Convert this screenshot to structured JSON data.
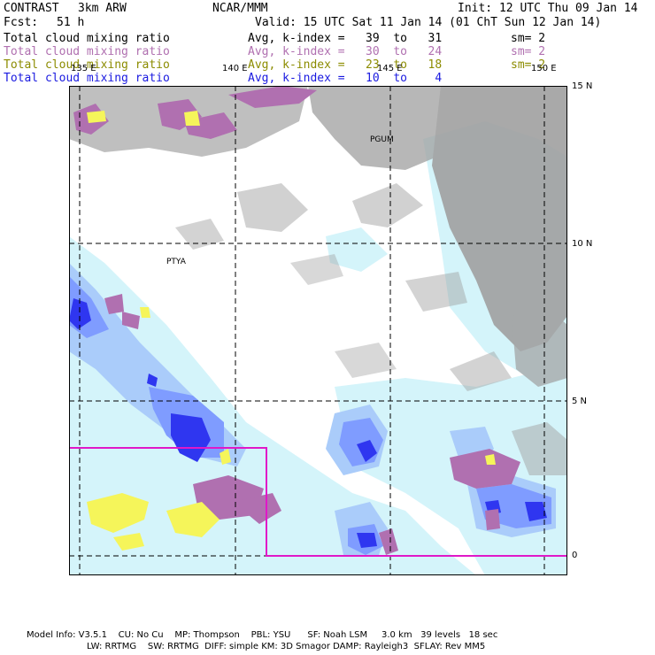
{
  "header": {
    "model": "CONTRAST",
    "resolution": "3km ARW",
    "center": "NCAR/MMM",
    "init": "Init: 12 UTC Thu 09 Jan 14",
    "fcst_label": "Fcst:",
    "fcst_value": "51 h",
    "valid": "Valid: 15 UTC Sat 11 Jan 14 (01 ChT Sun 12 Jan 14)"
  },
  "fields": [
    {
      "name": "Total cloud mixing ratio",
      "range": "Avg, k-index =   39  to   31",
      "sm": "sm= 2",
      "color": "#000000"
    },
    {
      "name": "Total cloud mixing ratio",
      "range": "Avg, k-index =   30  to   24",
      "sm": "sm= 2",
      "color": "#b070b0"
    },
    {
      "name": "Total cloud mixing ratio",
      "range": "Avg, k-index =   23  to   18",
      "sm": "sm= 2",
      "color": "#8c8c00"
    },
    {
      "name": "Total cloud mixing ratio",
      "range": "Avg, k-index =   10  to    4",
      "sm": "",
      "color": "#1a1ae0"
    }
  ],
  "map": {
    "lon_labels": [
      "135 E",
      "140 E",
      "145 E",
      "150 E"
    ],
    "lat_labels": [
      "15 N",
      "10 N",
      "5 N",
      "0"
    ],
    "stations": [
      "PGUM",
      "PTYA"
    ],
    "colors": {
      "upper_cloud": "#a0a0a0",
      "mid_cloud": "#b070b0",
      "low_mid_cloud": "#f5f55a",
      "low_cloud_light": "#d4f4fa",
      "low_cloud_medium": "#aaccfa",
      "low_cloud_strong": "#7f9cff",
      "low_cloud_max": "#2f36f0",
      "inner_domain": "#e018c8"
    }
  },
  "footer": {
    "line1": "Model Info: V3.5.1    CU: No Cu    MP: Thompson    PBL: YSU      SF: Noah LSM     3.0 km   39 levels   18 sec",
    "line2": "LW: RRTMG    SW: RRTMG  DIFF: simple KM: 3D Smagor DAMP: Rayleigh3  SFLAY: Rev MM5"
  }
}
